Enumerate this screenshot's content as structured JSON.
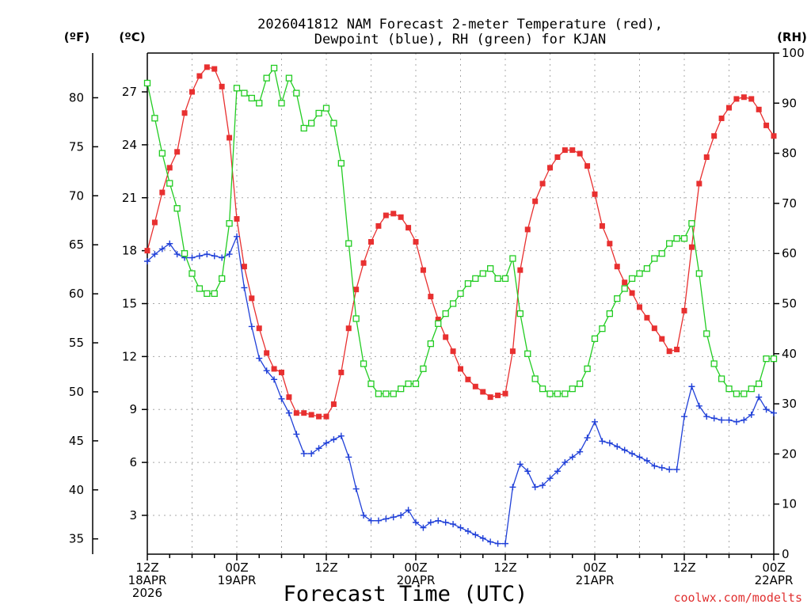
{
  "chart_data": {
    "type": "line",
    "title_line1": "2026041812 NAM Forecast 2-meter Temperature (red),",
    "title_line2": "Dewpoint (blue), RH (green) for KJAN",
    "xlabel": "Forecast Time (UTC)",
    "credit": "coolwx.com/modelts",
    "unit_f": "(ºF)",
    "unit_c": "(ºC)",
    "unit_rh": "(RH)",
    "x_range_hours": [
      0,
      84
    ],
    "celsius_range": [
      0.8,
      29.2
    ],
    "fahrenheit_range": [
      33.44,
      84.56
    ],
    "rh_range": [
      0,
      100
    ],
    "grid": true,
    "x_ticks": [
      {
        "hour": 0,
        "lines": [
          "12Z",
          "18APR",
          "2026"
        ]
      },
      {
        "hour": 12,
        "lines": [
          "00Z",
          "19APR"
        ]
      },
      {
        "hour": 24,
        "lines": [
          "12Z"
        ]
      },
      {
        "hour": 36,
        "lines": [
          "00Z",
          "20APR"
        ]
      },
      {
        "hour": 48,
        "lines": [
          "12Z"
        ]
      },
      {
        "hour": 60,
        "lines": [
          "00Z",
          "21APR"
        ]
      },
      {
        "hour": 72,
        "lines": [
          "12Z"
        ]
      },
      {
        "hour": 84,
        "lines": [
          "00Z",
          "22APR"
        ]
      }
    ],
    "celsius_ticks": [
      "3",
      "6",
      "9",
      "12",
      "15",
      "18",
      "21",
      "24",
      "27"
    ],
    "fahrenheit_ticks": [
      "35",
      "40",
      "45",
      "50",
      "55",
      "60",
      "65",
      "70",
      "75",
      "80"
    ],
    "rh_ticks": [
      "0",
      "10",
      "20",
      "30",
      "40",
      "50",
      "60",
      "70",
      "80",
      "90",
      "100"
    ],
    "series": [
      {
        "name": "Temperature",
        "unit": "°C",
        "color": "#e83030",
        "marker": "filled-square",
        "values": [
          18.0,
          19.6,
          21.3,
          22.7,
          23.6,
          25.8,
          27.0,
          27.9,
          28.4,
          28.3,
          27.3,
          24.4,
          19.8,
          17.1,
          15.3,
          13.6,
          12.2,
          11.3,
          11.1,
          9.7,
          8.8,
          8.8,
          8.7,
          8.6,
          8.6,
          9.3,
          11.1,
          13.6,
          15.8,
          17.3,
          18.5,
          19.4,
          20.0,
          20.1,
          19.9,
          19.3,
          18.5,
          16.9,
          15.4,
          14.1,
          13.1,
          12.3,
          11.3,
          10.7,
          10.3,
          10.0,
          9.7,
          9.8,
          9.9,
          12.3,
          16.9,
          19.2,
          20.8,
          21.8,
          22.7,
          23.3,
          23.7,
          23.7,
          23.5,
          22.8,
          21.2,
          19.4,
          18.4,
          17.1,
          16.2,
          15.6,
          14.8,
          14.2,
          13.6,
          13.0,
          12.3,
          12.4,
          14.6,
          18.2,
          21.8,
          23.3,
          24.5,
          25.5,
          26.1,
          26.6,
          26.7,
          26.6,
          26.0,
          25.1,
          24.5
        ]
      },
      {
        "name": "Dewpoint",
        "unit": "°C",
        "color": "#2040d8",
        "marker": "plus",
        "values": [
          17.4,
          17.8,
          18.1,
          18.4,
          17.8,
          17.6,
          17.6,
          17.7,
          17.8,
          17.7,
          17.6,
          17.8,
          18.8,
          15.9,
          13.7,
          11.9,
          11.2,
          10.7,
          9.6,
          8.8,
          7.6,
          6.5,
          6.5,
          6.8,
          7.1,
          7.3,
          7.5,
          6.3,
          4.5,
          3.0,
          2.7,
          2.7,
          2.8,
          2.9,
          3.0,
          3.3,
          2.6,
          2.3,
          2.6,
          2.7,
          2.6,
          2.5,
          2.3,
          2.1,
          1.9,
          1.7,
          1.5,
          1.4,
          1.4,
          4.6,
          5.9,
          5.5,
          4.6,
          4.7,
          5.1,
          5.5,
          6.0,
          6.3,
          6.6,
          7.4,
          8.3,
          7.2,
          7.1,
          6.9,
          6.7,
          6.5,
          6.3,
          6.1,
          5.8,
          5.7,
          5.6,
          5.6,
          8.6,
          10.3,
          9.2,
          8.6,
          8.5,
          8.4,
          8.4,
          8.3,
          8.4,
          8.7,
          9.7,
          9.0,
          8.8
        ]
      },
      {
        "name": "RH",
        "unit": "%",
        "color": "#22cc22",
        "marker": "open-square",
        "values": [
          94,
          87,
          80,
          74,
          69,
          60,
          56,
          53,
          52,
          52,
          55,
          66,
          93,
          92,
          91,
          90,
          95,
          97,
          90,
          95,
          92,
          85,
          86,
          88,
          89,
          86,
          78,
          62,
          47,
          38,
          34,
          32,
          32,
          32,
          33,
          34,
          34,
          37,
          42,
          46,
          48,
          50,
          52,
          54,
          55,
          56,
          57,
          55,
          55,
          59,
          48,
          40,
          35,
          33,
          32,
          32,
          32,
          33,
          34,
          37,
          43,
          45,
          48,
          51,
          53,
          55,
          56,
          57,
          59,
          60,
          62,
          63,
          63,
          66,
          56,
          44,
          38,
          35,
          33,
          32,
          32,
          33,
          34,
          39,
          39
        ]
      }
    ]
  }
}
